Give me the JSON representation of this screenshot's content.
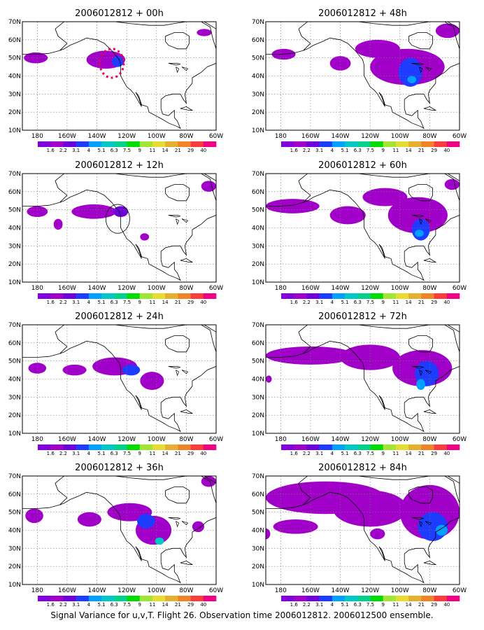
{
  "caption": "Signal Variance for u,v,T. Flight 26. Observation time 2006012812. 2006012500 ensemble.",
  "colorbar": {
    "labels": [
      "1.6",
      "2.2",
      "3.1",
      "4",
      "5.1",
      "6.3",
      "7.5",
      "9",
      "11",
      "14",
      "21",
      "29",
      "40"
    ],
    "colors": [
      "#8200dc",
      "#a000c8",
      "#6e00dc",
      "#1e3cff",
      "#00a0ff",
      "#00c8c8",
      "#00d28c",
      "#00dc00",
      "#a0e632",
      "#e6dc32",
      "#e6af2d",
      "#f08228",
      "#fa3c3c",
      "#f00082"
    ]
  },
  "chart_data": [
    {
      "type": "heatmap",
      "title": "2006012812 + 00h",
      "lead_hours": 0,
      "x_ticks": [
        "180",
        "160W",
        "140W",
        "120W",
        "100W",
        "80W",
        "60W"
      ],
      "y_ticks": [
        "10N",
        "20N",
        "30N",
        "40N",
        "50N",
        "60N",
        "70N"
      ],
      "xlim": [
        -190,
        -60
      ],
      "ylim": [
        10,
        70
      ],
      "grid": true,
      "features": [
        {
          "lon": -181,
          "lat": 50,
          "rl": 8,
          "rt": 3,
          "level": 1
        },
        {
          "lon": -134,
          "lat": 49,
          "rl": 13,
          "rt": 5,
          "level": 1
        },
        {
          "lon": -126,
          "lat": 48,
          "rl": 4,
          "rt": 3,
          "level": 3
        },
        {
          "lon": -68,
          "lat": 64,
          "rl": 5,
          "rt": 2,
          "level": 1
        }
      ],
      "obs_marker": {
        "type": "dotted_ellipse",
        "lon": -130,
        "lat": 47,
        "rl": 8,
        "rt": 8,
        "color": "#e6005a"
      }
    },
    {
      "type": "heatmap",
      "title": "2006012812 + 48h",
      "lead_hours": 48,
      "x_ticks": [
        "180",
        "160W",
        "140W",
        "120W",
        "100W",
        "80W",
        "60W"
      ],
      "y_ticks": [
        "10N",
        "20N",
        "30N",
        "40N",
        "50N",
        "60N",
        "70N"
      ],
      "xlim": [
        -190,
        -60
      ],
      "ylim": [
        10,
        70
      ],
      "grid": true,
      "features": [
        {
          "lon": -178,
          "lat": 52,
          "rl": 8,
          "rt": 3,
          "level": 1
        },
        {
          "lon": -140,
          "lat": 47,
          "rl": 7,
          "rt": 4,
          "level": 1
        },
        {
          "lon": -115,
          "lat": 55,
          "rl": 15,
          "rt": 5,
          "level": 1
        },
        {
          "lon": -95,
          "lat": 45,
          "rl": 25,
          "rt": 10,
          "level": 1
        },
        {
          "lon": -93,
          "lat": 42,
          "rl": 8,
          "rt": 8,
          "level": 3
        },
        {
          "lon": -92,
          "lat": 38,
          "rl": 3,
          "rt": 2,
          "level": 4
        },
        {
          "lon": -68,
          "lat": 65,
          "rl": 8,
          "rt": 4,
          "level": 1
        }
      ]
    },
    {
      "type": "heatmap",
      "title": "2006012812 + 12h",
      "lead_hours": 12,
      "x_ticks": [
        "180",
        "160W",
        "140W",
        "120W",
        "100W",
        "80W",
        "60W"
      ],
      "y_ticks": [
        "10N",
        "20N",
        "30N",
        "40N",
        "50N",
        "60N",
        "70N"
      ],
      "xlim": [
        -190,
        -60
      ],
      "ylim": [
        10,
        70
      ],
      "grid": true,
      "features": [
        {
          "lon": -180,
          "lat": 49,
          "rl": 7,
          "rt": 3,
          "level": 1
        },
        {
          "lon": -166,
          "lat": 42,
          "rl": 3,
          "rt": 3,
          "level": 1
        },
        {
          "lon": -142,
          "lat": 49,
          "rl": 15,
          "rt": 4,
          "level": 1
        },
        {
          "lon": -124,
          "lat": 49,
          "rl": 5,
          "rt": 3,
          "level": 2
        },
        {
          "lon": -108,
          "lat": 35,
          "rl": 3,
          "rt": 2,
          "level": 1
        },
        {
          "lon": -65,
          "lat": 63,
          "rl": 5,
          "rt": 3,
          "level": 1
        }
      ],
      "obs_marker": {
        "type": "circle",
        "lon": -126,
        "lat": 45,
        "rl": 8,
        "rt": 8,
        "color": "#000000"
      }
    },
    {
      "type": "heatmap",
      "title": "2006012812 + 60h",
      "lead_hours": 60,
      "x_ticks": [
        "180",
        "160W",
        "140W",
        "120W",
        "100W",
        "80W",
        "60W"
      ],
      "y_ticks": [
        "10N",
        "20N",
        "30N",
        "40N",
        "50N",
        "60N",
        "70N"
      ],
      "xlim": [
        -190,
        -60
      ],
      "ylim": [
        10,
        70
      ],
      "grid": true,
      "features": [
        {
          "lon": -172,
          "lat": 52,
          "rl": 18,
          "rt": 4,
          "level": 1
        },
        {
          "lon": -135,
          "lat": 47,
          "rl": 12,
          "rt": 5,
          "level": 1
        },
        {
          "lon": -110,
          "lat": 57,
          "rl": 15,
          "rt": 5,
          "level": 1
        },
        {
          "lon": -88,
          "lat": 47,
          "rl": 20,
          "rt": 10,
          "level": 1
        },
        {
          "lon": -86,
          "lat": 39,
          "rl": 6,
          "rt": 6,
          "level": 3
        },
        {
          "lon": -87,
          "lat": 37,
          "rl": 3,
          "rt": 2,
          "level": 4
        },
        {
          "lon": -65,
          "lat": 64,
          "rl": 5,
          "rt": 3,
          "level": 1
        }
      ]
    },
    {
      "type": "heatmap",
      "title": "2006012812 + 24h",
      "lead_hours": 24,
      "x_ticks": [
        "180",
        "160W",
        "140W",
        "120W",
        "100W",
        "80W",
        "60W"
      ],
      "y_ticks": [
        "10N",
        "20N",
        "30N",
        "40N",
        "50N",
        "60N",
        "70N"
      ],
      "xlim": [
        -190,
        -60
      ],
      "ylim": [
        10,
        70
      ],
      "grid": true,
      "features": [
        {
          "lon": -180,
          "lat": 46,
          "rl": 6,
          "rt": 3,
          "level": 1
        },
        {
          "lon": -155,
          "lat": 45,
          "rl": 8,
          "rt": 3,
          "level": 1
        },
        {
          "lon": -128,
          "lat": 47,
          "rl": 15,
          "rt": 5,
          "level": 1
        },
        {
          "lon": -117,
          "lat": 45,
          "rl": 6,
          "rt": 3,
          "level": 3
        },
        {
          "lon": -103,
          "lat": 39,
          "rl": 8,
          "rt": 5,
          "level": 1
        }
      ]
    },
    {
      "type": "heatmap",
      "title": "2006012812 + 72h",
      "lead_hours": 72,
      "x_ticks": [
        "180",
        "160W",
        "140W",
        "120W",
        "100W",
        "80W",
        "60W"
      ],
      "y_ticks": [
        "10N",
        "20N",
        "30N",
        "40N",
        "50N",
        "60N",
        "70N"
      ],
      "xlim": [
        -190,
        -60
      ],
      "ylim": [
        10,
        70
      ],
      "grid": true,
      "features": [
        {
          "lon": -160,
          "lat": 53,
          "rl": 30,
          "rt": 5,
          "level": 1
        },
        {
          "lon": -120,
          "lat": 52,
          "rl": 20,
          "rt": 7,
          "level": 1
        },
        {
          "lon": -85,
          "lat": 46,
          "rl": 20,
          "rt": 10,
          "level": 1
        },
        {
          "lon": -82,
          "lat": 43,
          "rl": 8,
          "rt": 7,
          "level": 3
        },
        {
          "lon": -86,
          "lat": 37,
          "rl": 3,
          "rt": 3,
          "level": 4
        },
        {
          "lon": -188,
          "lat": 40,
          "rl": 2,
          "rt": 2,
          "level": 1
        }
      ]
    },
    {
      "type": "heatmap",
      "title": "2006012812 + 36h",
      "lead_hours": 36,
      "x_ticks": [
        "180",
        "160W",
        "140W",
        "120W",
        "100W",
        "80W",
        "60W"
      ],
      "y_ticks": [
        "10N",
        "20N",
        "30N",
        "40N",
        "50N",
        "60N",
        "70N"
      ],
      "xlim": [
        -190,
        -60
      ],
      "ylim": [
        10,
        70
      ],
      "grid": true,
      "features": [
        {
          "lon": -182,
          "lat": 48,
          "rl": 6,
          "rt": 4,
          "level": 1
        },
        {
          "lon": -145,
          "lat": 46,
          "rl": 8,
          "rt": 4,
          "level": 1
        },
        {
          "lon": -118,
          "lat": 50,
          "rl": 15,
          "rt": 5,
          "level": 1
        },
        {
          "lon": -102,
          "lat": 40,
          "rl": 12,
          "rt": 8,
          "level": 1
        },
        {
          "lon": -107,
          "lat": 45,
          "rl": 6,
          "rt": 4,
          "level": 3
        },
        {
          "lon": -98,
          "lat": 34,
          "rl": 3,
          "rt": 2,
          "level": 5
        },
        {
          "lon": -72,
          "lat": 42,
          "rl": 4,
          "rt": 3,
          "level": 1
        },
        {
          "lon": -65,
          "lat": 67,
          "rl": 5,
          "rt": 3,
          "level": 1
        }
      ]
    },
    {
      "type": "heatmap",
      "title": "2006012812 + 84h",
      "lead_hours": 84,
      "x_ticks": [
        "180",
        "160W",
        "140W",
        "120W",
        "100W",
        "80W",
        "60W"
      ],
      "y_ticks": [
        "10N",
        "20N",
        "30N",
        "40N",
        "50N",
        "60N",
        "70N"
      ],
      "xlim": [
        -190,
        -60
      ],
      "ylim": [
        10,
        70
      ],
      "grid": true,
      "features": [
        {
          "lon": -150,
          "lat": 58,
          "rl": 40,
          "rt": 9,
          "level": 1
        },
        {
          "lon": -170,
          "lat": 42,
          "rl": 15,
          "rt": 4,
          "level": 1
        },
        {
          "lon": -120,
          "lat": 52,
          "rl": 25,
          "rt": 10,
          "level": 1
        },
        {
          "lon": -80,
          "lat": 50,
          "rl": 20,
          "rt": 15,
          "level": 1
        },
        {
          "lon": -78,
          "lat": 42,
          "rl": 10,
          "rt": 8,
          "level": 3
        },
        {
          "lon": -72,
          "lat": 40,
          "rl": 4,
          "rt": 3,
          "level": 4
        },
        {
          "lon": -115,
          "lat": 38,
          "rl": 5,
          "rt": 3,
          "level": 1
        },
        {
          "lon": -190,
          "lat": 38,
          "rl": 3,
          "rt": 3,
          "level": 1
        }
      ]
    }
  ]
}
